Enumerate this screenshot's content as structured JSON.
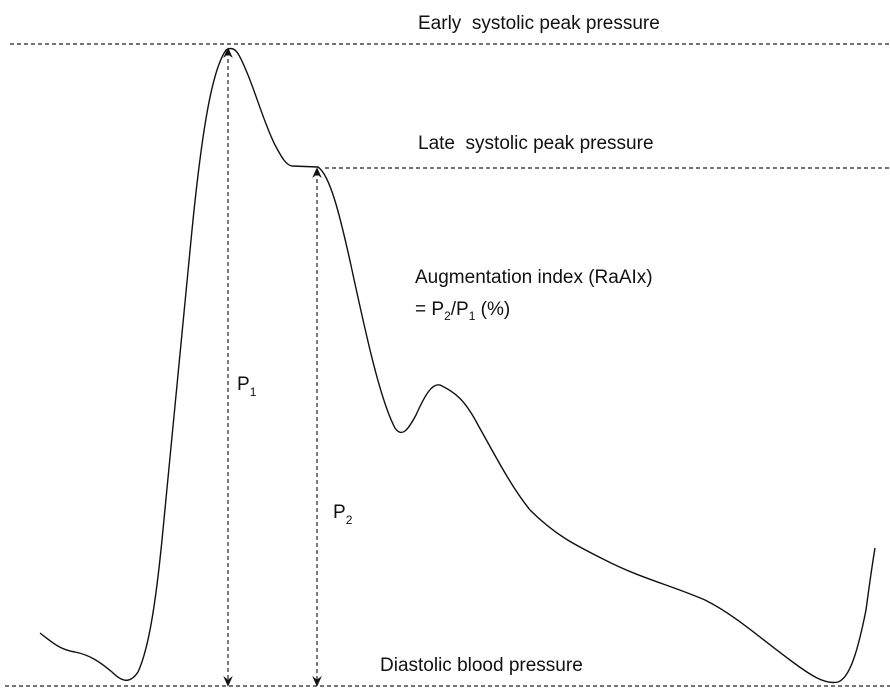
{
  "labels": {
    "early": "Early  systolic peak pressure",
    "late": "Late  systolic peak pressure",
    "aix": "Augmentation index (RaAIx)",
    "formula": {
      "eq": "= P",
      "sub1": "2",
      "slash": "/P",
      "sub2": "1",
      "unit": " (%)"
    },
    "p1": {
      "main": "P",
      "sub": "1"
    },
    "p2": {
      "main": "P",
      "sub": "2"
    },
    "diastolic": "Diastolic blood pressure"
  }
}
